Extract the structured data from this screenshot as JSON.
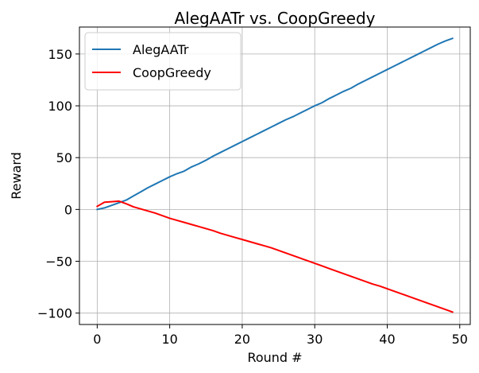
{
  "chart_data": {
    "type": "line",
    "title": "AlegAATr vs. CoopGreedy",
    "xlabel": "Round #",
    "ylabel": "Reward",
    "xlim": [
      -2.45,
      51.45
    ],
    "ylim": [
      -111,
      176
    ],
    "xticks": [
      0,
      10,
      20,
      30,
      40,
      50
    ],
    "yticks": [
      -100,
      -50,
      0,
      50,
      100,
      150
    ],
    "xtick_labels": [
      "0",
      "10",
      "20",
      "30",
      "40",
      "50"
    ],
    "ytick_labels": [
      "−100",
      "−50",
      "0",
      "50",
      "100",
      "150"
    ],
    "grid": true,
    "legend_position": "top-left",
    "series": [
      {
        "name": "AlegAATr",
        "color": "#1f77b4",
        "x": [
          0,
          1,
          2,
          3,
          4,
          5,
          6,
          7,
          8,
          9,
          10,
          11,
          12,
          13,
          14,
          15,
          16,
          17,
          18,
          19,
          20,
          21,
          22,
          23,
          24,
          25,
          26,
          27,
          28,
          29,
          30,
          31,
          32,
          33,
          34,
          35,
          36,
          37,
          38,
          39,
          40,
          41,
          42,
          43,
          44,
          45,
          46,
          47,
          48,
          49
        ],
        "y": [
          0,
          1.5,
          4,
          6.5,
          9,
          13,
          17,
          21,
          24.5,
          28,
          31.5,
          34.5,
          37,
          41,
          44,
          47.5,
          51.5,
          55,
          58.5,
          62,
          65.5,
          69,
          72.5,
          76,
          79.5,
          83,
          86.5,
          89.5,
          93,
          96.5,
          100,
          103,
          107,
          110.5,
          114,
          117,
          121,
          124.5,
          128,
          131.5,
          135,
          138.5,
          142,
          145.5,
          149,
          152.5,
          156,
          159.5,
          162.5,
          165
        ]
      },
      {
        "name": "CoopGreedy",
        "color": "#ff0000",
        "x": [
          0,
          1,
          2,
          3,
          4,
          5,
          6,
          7,
          8,
          9,
          10,
          11,
          12,
          13,
          14,
          15,
          16,
          17,
          18,
          19,
          20,
          21,
          22,
          23,
          24,
          25,
          26,
          27,
          28,
          29,
          30,
          31,
          32,
          33,
          34,
          35,
          36,
          37,
          38,
          39,
          40,
          41,
          42,
          43,
          44,
          45,
          46,
          47,
          48,
          49
        ],
        "y": [
          3,
          7,
          7.5,
          8,
          5.5,
          2.5,
          0.5,
          -1.5,
          -3.5,
          -6,
          -8.5,
          -10.5,
          -12.5,
          -14.5,
          -16.5,
          -18.5,
          -20.5,
          -23,
          -25,
          -27,
          -29,
          -31,
          -33,
          -35,
          -37,
          -39.5,
          -42,
          -44.5,
          -47,
          -49.5,
          -52,
          -54.5,
          -57,
          -59.5,
          -62,
          -64.5,
          -67,
          -69.5,
          -72,
          -74,
          -76.5,
          -79,
          -81.5,
          -84,
          -86.5,
          -89,
          -91.5,
          -94,
          -96.5,
          -99
        ]
      }
    ]
  }
}
